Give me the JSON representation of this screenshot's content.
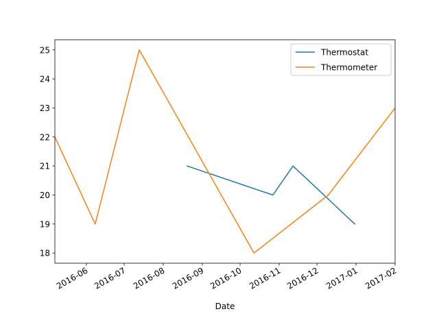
{
  "chart_data": {
    "type": "line",
    "title": "",
    "xlabel": "Date",
    "ylabel": "",
    "x_ticks": [
      "2016-06",
      "2016-07",
      "2016-08",
      "2016-09",
      "2016-10",
      "2016-11",
      "2016-12",
      "2017-01",
      "2017-02"
    ],
    "y_ticks": [
      "18",
      "19",
      "20",
      "21",
      "22",
      "23",
      "24",
      "25"
    ],
    "xlim": [
      "2016-05-07",
      "2017-02-01"
    ],
    "ylim": [
      17.65,
      25.35
    ],
    "grid": false,
    "legend_placement": "top-right",
    "series": [
      {
        "name": "Thermostat",
        "color": "#1f77b4",
        "points": [
          {
            "x": "2016-08-20",
            "y": 21
          },
          {
            "x": "2016-10-27",
            "y": 20
          },
          {
            "x": "2016-11-12",
            "y": 21
          },
          {
            "x": "2016-12-31",
            "y": 19
          }
        ]
      },
      {
        "name": "Thermometer",
        "color": "#ff7f0e",
        "points": [
          {
            "x": "2016-05-07",
            "y": 22
          },
          {
            "x": "2016-06-08",
            "y": 19
          },
          {
            "x": "2016-07-13",
            "y": 25
          },
          {
            "x": "2016-10-12",
            "y": 18
          },
          {
            "x": "2016-12-10",
            "y": 20
          },
          {
            "x": "2017-02-01",
            "y": 23
          }
        ]
      }
    ]
  }
}
